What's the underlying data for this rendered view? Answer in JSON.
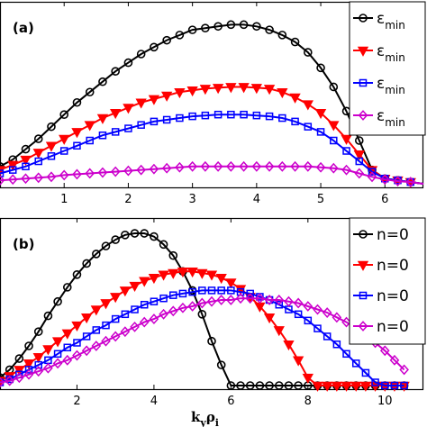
{
  "colors": {
    "black": "#000000",
    "red": "#ff0000",
    "blue": "#0000ff",
    "magenta": "#cc00cc"
  },
  "chart_data": [
    {
      "panel": "(a)",
      "type": "line",
      "xlim": [
        0,
        6.6
      ],
      "ylim": [
        0,
        1.0
      ],
      "xticks": [
        "1",
        "2",
        "3",
        "4",
        "5",
        "6"
      ],
      "xtick_values": [
        1,
        2,
        3,
        4,
        5,
        6
      ],
      "legend_position": "top-right",
      "legend_labels": [
        {
          "main": "ε",
          "sub": "min",
          "color": "#000000",
          "marker": "circle"
        },
        {
          "main": "ε",
          "sub": "min",
          "color": "#ff0000",
          "marker": "triangle-down"
        },
        {
          "main": "ε",
          "sub": "min",
          "color": "#0000ff",
          "marker": "square"
        },
        {
          "main": "ε",
          "sub": "min",
          "color": "#cc00cc",
          "marker": "diamond"
        }
      ],
      "series": [
        {
          "color": "#000000",
          "marker": "circle",
          "x": [
            0.0,
            0.2,
            0.4,
            0.6,
            0.8,
            1.0,
            1.2,
            1.4,
            1.6,
            1.8,
            2.0,
            2.2,
            2.4,
            2.6,
            2.8,
            3.0,
            3.2,
            3.4,
            3.6,
            3.8,
            4.0,
            4.2,
            4.4,
            4.6,
            4.8,
            5.0,
            5.2,
            5.4,
            5.6,
            5.8,
            6.0,
            6.2,
            6.4,
            6.6
          ],
          "y": [
            0.1,
            0.14,
            0.2,
            0.26,
            0.33,
            0.4,
            0.47,
            0.53,
            0.59,
            0.65,
            0.7,
            0.75,
            0.79,
            0.83,
            0.86,
            0.89,
            0.9,
            0.91,
            0.92,
            0.92,
            0.91,
            0.89,
            0.86,
            0.82,
            0.76,
            0.67,
            0.56,
            0.42,
            0.25,
            0.08,
            0.03,
            0.02,
            0.01,
            0.0
          ]
        },
        {
          "color": "#ff0000",
          "marker": "triangle-down",
          "x": [
            0.0,
            0.2,
            0.4,
            0.6,
            0.8,
            1.0,
            1.2,
            1.4,
            1.6,
            1.8,
            2.0,
            2.2,
            2.4,
            2.6,
            2.8,
            3.0,
            3.2,
            3.4,
            3.6,
            3.8,
            4.0,
            4.2,
            4.4,
            4.6,
            4.8,
            5.0,
            5.2,
            5.4,
            5.6,
            5.8,
            6.0,
            6.2,
            6.4,
            6.6
          ],
          "y": [
            0.08,
            0.11,
            0.14,
            0.18,
            0.22,
            0.26,
            0.3,
            0.34,
            0.38,
            0.41,
            0.44,
            0.47,
            0.49,
            0.51,
            0.53,
            0.54,
            0.55,
            0.555,
            0.56,
            0.56,
            0.555,
            0.55,
            0.53,
            0.5,
            0.46,
            0.41,
            0.34,
            0.26,
            0.17,
            0.08,
            0.03,
            0.02,
            0.01,
            0.0
          ]
        },
        {
          "color": "#0000ff",
          "marker": "square",
          "x": [
            0.0,
            0.2,
            0.4,
            0.6,
            0.8,
            1.0,
            1.2,
            1.4,
            1.6,
            1.8,
            2.0,
            2.2,
            2.4,
            2.6,
            2.8,
            3.0,
            3.2,
            3.4,
            3.6,
            3.8,
            4.0,
            4.2,
            4.4,
            4.6,
            4.8,
            5.0,
            5.2,
            5.4,
            5.6,
            5.8,
            6.0,
            6.2,
            6.4,
            6.6
          ],
          "y": [
            0.06,
            0.08,
            0.1,
            0.13,
            0.16,
            0.19,
            0.22,
            0.25,
            0.28,
            0.3,
            0.32,
            0.34,
            0.36,
            0.37,
            0.38,
            0.39,
            0.395,
            0.4,
            0.4,
            0.4,
            0.395,
            0.39,
            0.38,
            0.36,
            0.33,
            0.3,
            0.25,
            0.19,
            0.13,
            0.07,
            0.03,
            0.02,
            0.01,
            0.0
          ]
        },
        {
          "color": "#cc00cc",
          "marker": "diamond",
          "x": [
            0.0,
            0.2,
            0.4,
            0.6,
            0.8,
            1.0,
            1.2,
            1.4,
            1.6,
            1.8,
            2.0,
            2.2,
            2.4,
            2.6,
            2.8,
            3.0,
            3.2,
            3.4,
            3.6,
            3.8,
            4.0,
            4.2,
            4.4,
            4.6,
            4.8,
            5.0,
            5.2,
            5.4,
            5.6,
            5.8,
            6.0,
            6.2,
            6.4,
            6.6
          ],
          "y": [
            0.02,
            0.025,
            0.03,
            0.035,
            0.04,
            0.05,
            0.055,
            0.06,
            0.065,
            0.07,
            0.075,
            0.08,
            0.085,
            0.09,
            0.095,
            0.1,
            0.1,
            0.1,
            0.1,
            0.1,
            0.1,
            0.1,
            0.1,
            0.1,
            0.1,
            0.095,
            0.09,
            0.08,
            0.06,
            0.04,
            0.025,
            0.015,
            0.01,
            0.0
          ]
        }
      ]
    },
    {
      "panel": "(b)",
      "type": "line",
      "xlim": [
        0,
        11
      ],
      "ylim": [
        0,
        1.0
      ],
      "xticks": [
        "2",
        "4",
        "6",
        "8",
        "10"
      ],
      "xtick_values": [
        2,
        4,
        6,
        8,
        10
      ],
      "xlabel_main": "k",
      "xlabel_sub1": "y",
      "xlabel_main2": "ρ",
      "xlabel_sub2": "i",
      "legend_position": "top-right",
      "legend_labels": [
        {
          "text": "n=0",
          "color": "#000000",
          "marker": "circle"
        },
        {
          "text": "n=0",
          "color": "#ff0000",
          "marker": "triangle-down"
        },
        {
          "text": "n=0",
          "color": "#0000ff",
          "marker": "square"
        },
        {
          "text": "n=0",
          "color": "#cc00cc",
          "marker": "diamond"
        }
      ],
      "series": [
        {
          "color": "#000000",
          "marker": "circle",
          "x": [
            0.0,
            0.25,
            0.5,
            0.75,
            1.0,
            1.25,
            1.5,
            1.75,
            2.0,
            2.25,
            2.5,
            2.75,
            3.0,
            3.25,
            3.5,
            3.75,
            4.0,
            4.25,
            4.5,
            4.75,
            5.0,
            5.25,
            5.5,
            5.75,
            6.0,
            6.25,
            6.5,
            6.75,
            7.0,
            7.25,
            7.5,
            7.75,
            8.0,
            8.25,
            8.5,
            8.75,
            9.0,
            9.25,
            9.5,
            9.75,
            10.0,
            10.25,
            10.5
          ],
          "y": [
            0.05,
            0.1,
            0.17,
            0.25,
            0.34,
            0.44,
            0.53,
            0.62,
            0.7,
            0.77,
            0.83,
            0.88,
            0.92,
            0.95,
            0.96,
            0.96,
            0.94,
            0.89,
            0.82,
            0.72,
            0.6,
            0.45,
            0.28,
            0.13,
            0.0,
            0.0,
            0.0,
            0.0,
            0.0,
            0.0,
            0.0,
            0.0,
            0.0,
            0.0,
            0.0,
            0.0,
            0.0,
            0.0,
            0.0,
            0.0,
            0.0,
            0.0,
            0.0
          ]
        },
        {
          "color": "#ff0000",
          "marker": "triangle-down",
          "x": [
            0.0,
            0.25,
            0.5,
            0.75,
            1.0,
            1.25,
            1.5,
            1.75,
            2.0,
            2.25,
            2.5,
            2.75,
            3.0,
            3.25,
            3.5,
            3.75,
            4.0,
            4.25,
            4.5,
            4.75,
            5.0,
            5.25,
            5.5,
            5.75,
            6.0,
            6.25,
            6.5,
            6.75,
            7.0,
            7.25,
            7.5,
            7.75,
            8.0,
            8.25,
            8.5,
            8.75,
            9.0,
            9.25,
            9.5,
            9.75,
            10.0,
            10.25,
            10.5
          ],
          "y": [
            0.03,
            0.06,
            0.1,
            0.14,
            0.18,
            0.23,
            0.28,
            0.33,
            0.38,
            0.43,
            0.48,
            0.52,
            0.56,
            0.6,
            0.63,
            0.66,
            0.68,
            0.7,
            0.71,
            0.72,
            0.72,
            0.71,
            0.7,
            0.68,
            0.65,
            0.61,
            0.56,
            0.5,
            0.43,
            0.35,
            0.26,
            0.16,
            0.05,
            0.0,
            0.0,
            0.0,
            0.0,
            0.0,
            0.0,
            0.0,
            0.0,
            0.0,
            0.0
          ]
        },
        {
          "color": "#0000ff",
          "marker": "square",
          "x": [
            0.0,
            0.25,
            0.5,
            0.75,
            1.0,
            1.25,
            1.5,
            1.75,
            2.0,
            2.25,
            2.5,
            2.75,
            3.0,
            3.25,
            3.5,
            3.75,
            4.0,
            4.25,
            4.5,
            4.75,
            5.0,
            5.25,
            5.5,
            5.75,
            6.0,
            6.25,
            6.5,
            6.75,
            7.0,
            7.25,
            7.5,
            7.75,
            8.0,
            8.25,
            8.5,
            8.75,
            9.0,
            9.25,
            9.5,
            9.75,
            10.0,
            10.25,
            10.5
          ],
          "y": [
            0.02,
            0.04,
            0.07,
            0.1,
            0.13,
            0.16,
            0.2,
            0.24,
            0.27,
            0.31,
            0.35,
            0.38,
            0.42,
            0.45,
            0.48,
            0.51,
            0.53,
            0.55,
            0.57,
            0.58,
            0.59,
            0.6,
            0.6,
            0.6,
            0.6,
            0.59,
            0.58,
            0.56,
            0.54,
            0.51,
            0.48,
            0.45,
            0.41,
            0.36,
            0.31,
            0.26,
            0.2,
            0.14,
            0.08,
            0.02,
            0.0,
            0.0,
            0.0
          ]
        },
        {
          "color": "#cc00cc",
          "marker": "diamond",
          "x": [
            0.0,
            0.25,
            0.5,
            0.75,
            1.0,
            1.25,
            1.5,
            1.75,
            2.0,
            2.25,
            2.5,
            2.75,
            3.0,
            3.25,
            3.5,
            3.75,
            4.0,
            4.25,
            4.5,
            4.75,
            5.0,
            5.25,
            5.5,
            5.75,
            6.0,
            6.25,
            6.5,
            6.75,
            7.0,
            7.25,
            7.5,
            7.75,
            8.0,
            8.25,
            8.5,
            8.75,
            9.0,
            9.25,
            9.5,
            9.75,
            10.0,
            10.25,
            10.5
          ],
          "y": [
            0.02,
            0.03,
            0.05,
            0.07,
            0.09,
            0.11,
            0.14,
            0.16,
            0.19,
            0.22,
            0.25,
            0.28,
            0.31,
            0.34,
            0.37,
            0.4,
            0.42,
            0.45,
            0.47,
            0.49,
            0.5,
            0.52,
            0.53,
            0.54,
            0.54,
            0.55,
            0.55,
            0.55,
            0.54,
            0.54,
            0.53,
            0.52,
            0.5,
            0.48,
            0.46,
            0.43,
            0.4,
            0.36,
            0.32,
            0.27,
            0.22,
            0.16,
            0.1
          ]
        }
      ]
    }
  ]
}
